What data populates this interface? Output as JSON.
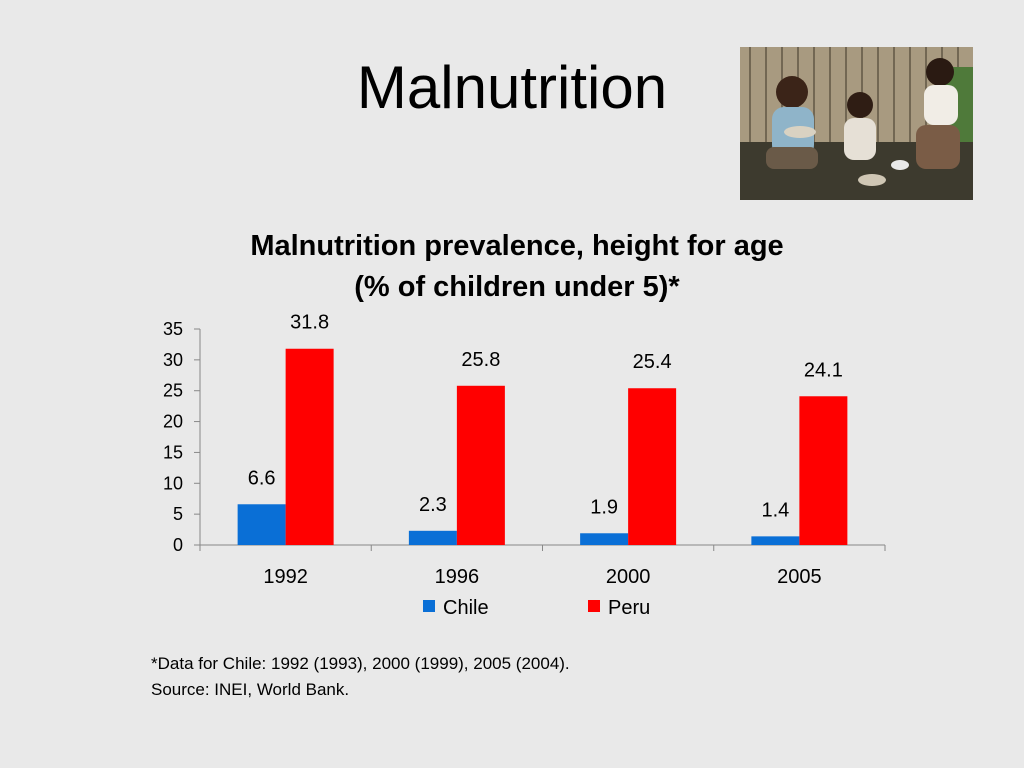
{
  "slide": {
    "title": "Malnutrition",
    "photo": {
      "icon": "children-eating-photo"
    }
  },
  "chart_data": {
    "type": "bar",
    "title_line1": "Malnutrition prevalence, height for age",
    "title_line2": "(% of children under 5)*",
    "categories": [
      "1992",
      "1996",
      "2000",
      "2005"
    ],
    "series": [
      {
        "name": "Chile",
        "color": "#0a6fd6",
        "values": [
          6.6,
          2.3,
          1.9,
          1.4
        ]
      },
      {
        "name": "Peru",
        "color": "#ff0000",
        "values": [
          31.8,
          25.8,
          25.4,
          24.1
        ]
      }
    ],
    "ylim": [
      0,
      35
    ],
    "yticks": [
      0,
      5,
      10,
      15,
      20,
      25,
      30,
      35
    ],
    "grid": false,
    "legend": "bottom",
    "data_labels": true
  },
  "footnote": {
    "line1": "*Data for Chile: 1992 (1993), 2000 (1999), 2005 (2004).",
    "line2": "Source: INEI, World Bank."
  }
}
